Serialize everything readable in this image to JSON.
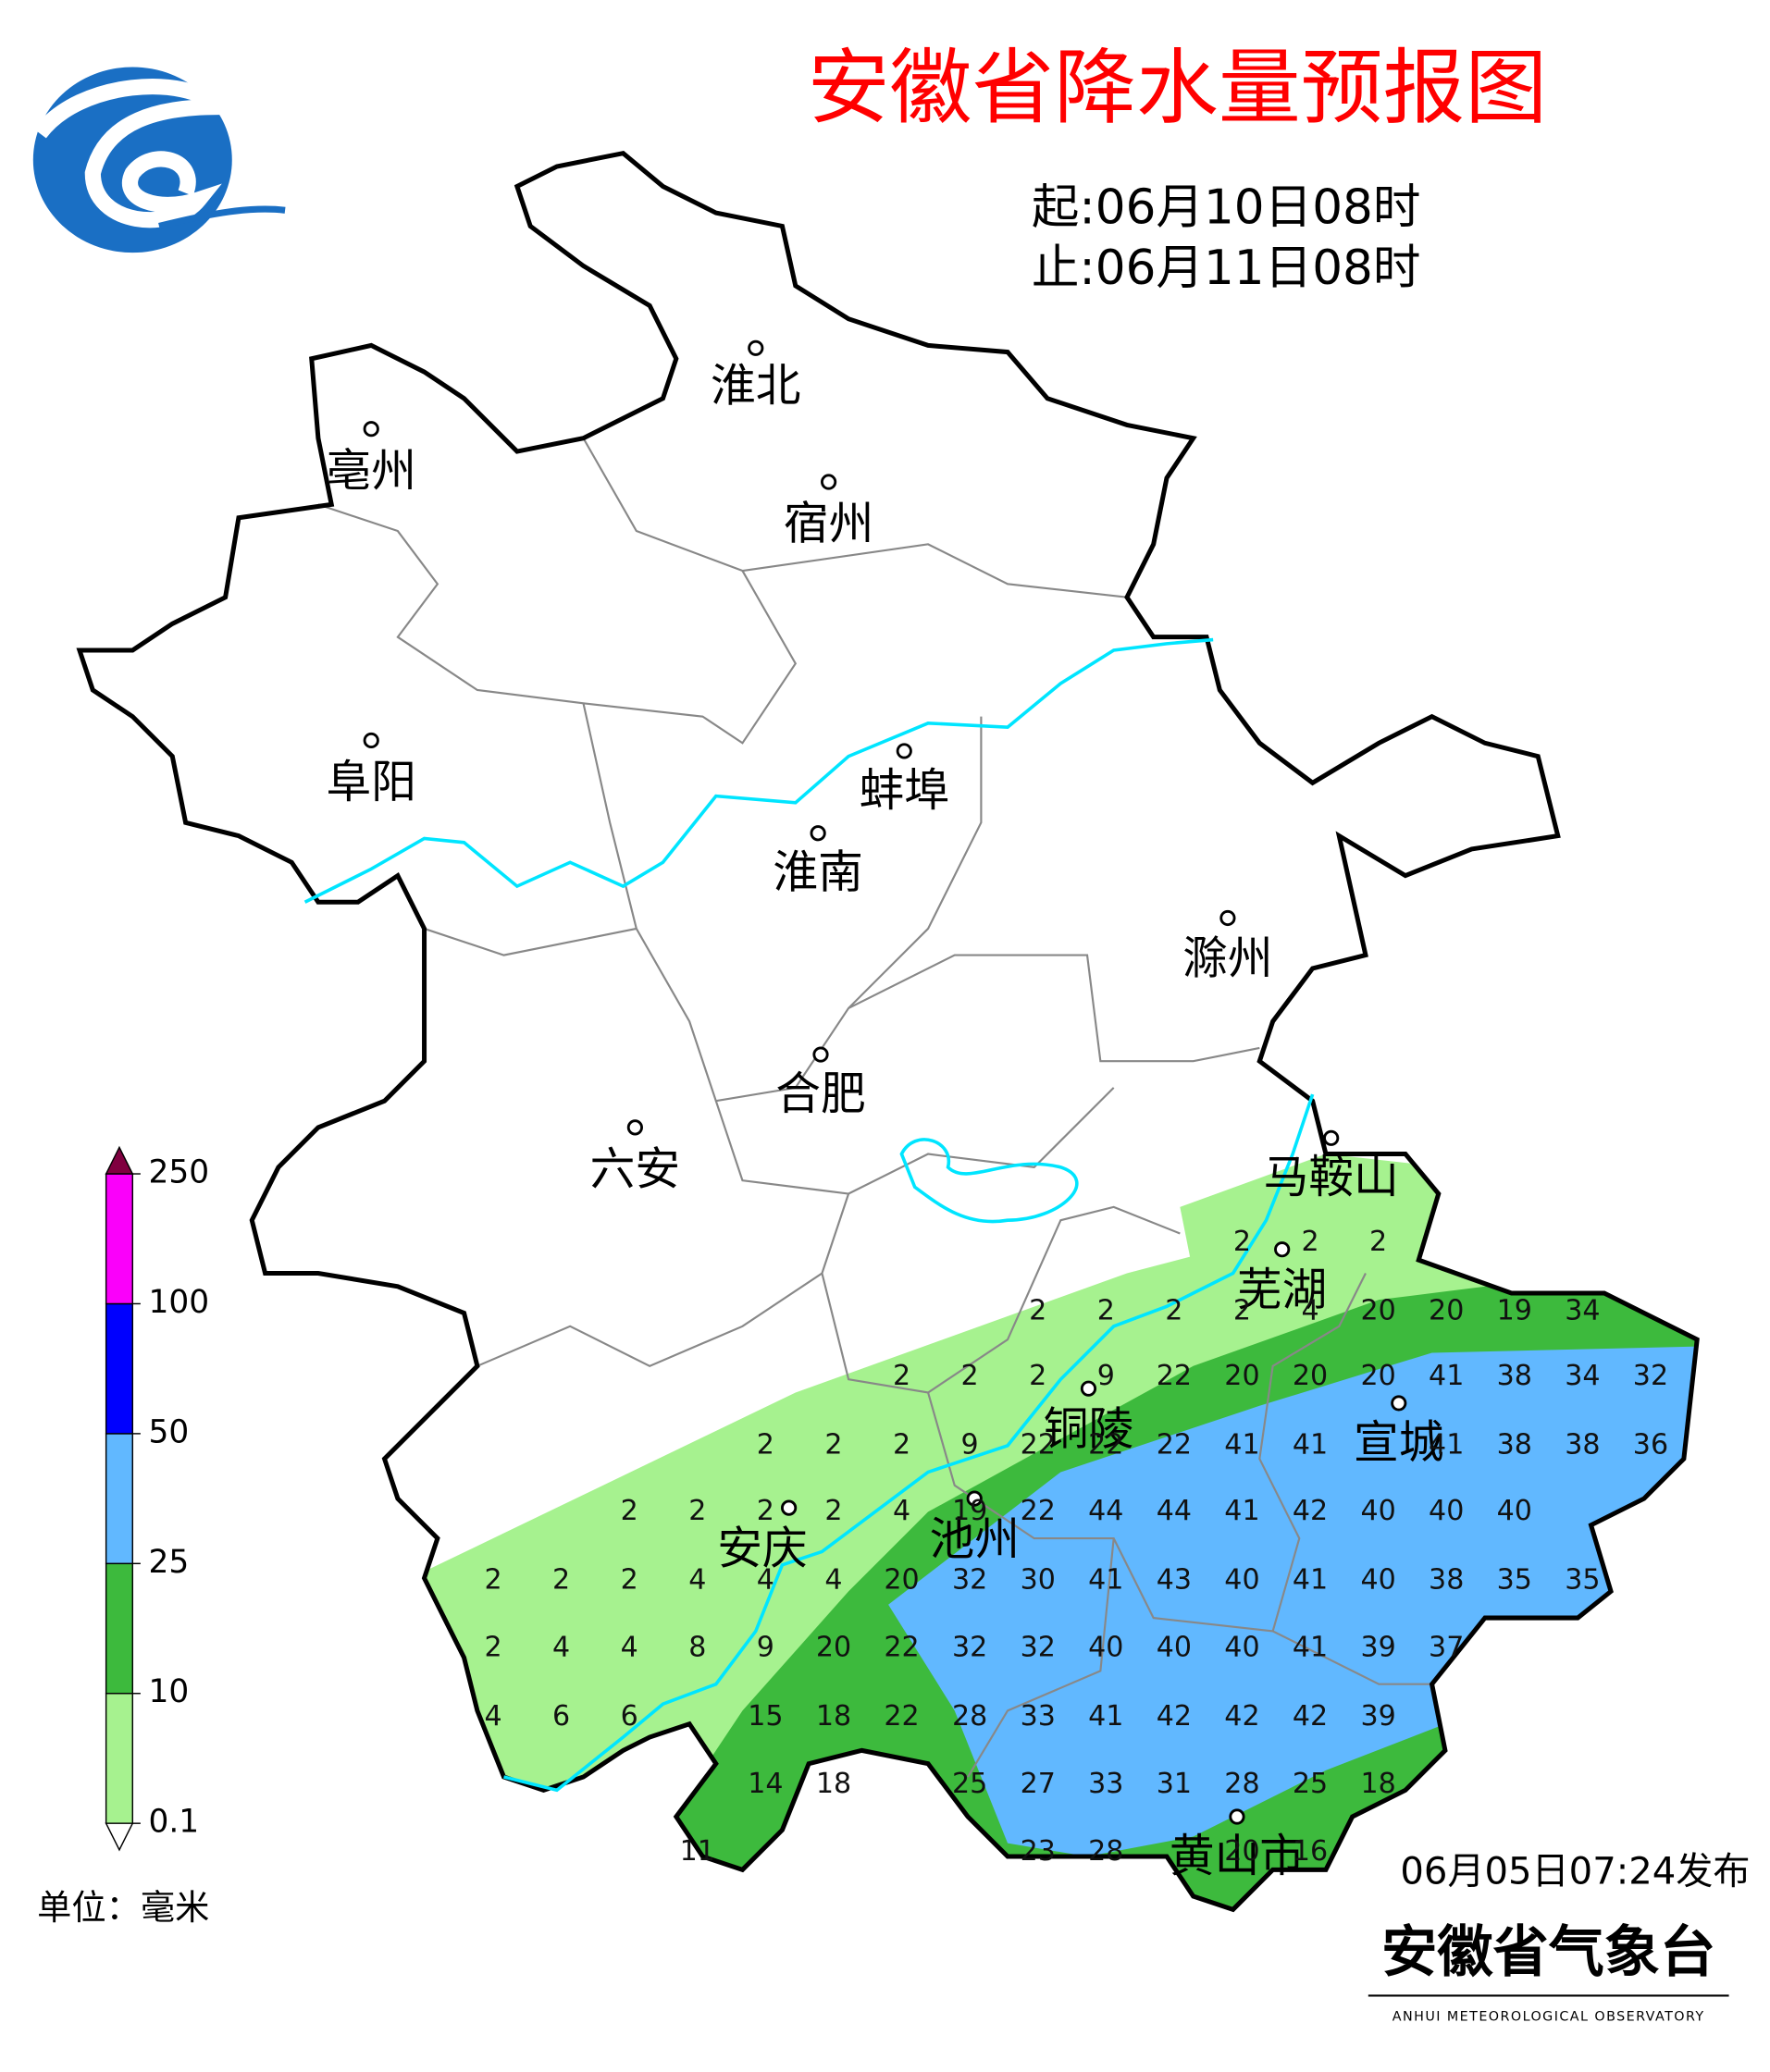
{
  "header": {
    "title": "安徽省降水量预报图",
    "start": "起:06月10日08时",
    "end": "止:06月11日08时"
  },
  "cities": [
    "淮北",
    "亳州",
    "宿州",
    "阜阳",
    "蚌埠",
    "淮南",
    "滁州",
    "合肥",
    "六安",
    "马鞍山",
    "芜湖",
    "铜陵",
    "宣城",
    "安庆",
    "池州",
    "黄山市"
  ],
  "grid": {
    "rows": [
      [
        null,
        null,
        null,
        null,
        null,
        null,
        null,
        null,
        null,
        null,
        null,
        2,
        2,
        2,
        null,
        null,
        null,
        null
      ],
      [
        null,
        null,
        null,
        null,
        null,
        null,
        null,
        null,
        2,
        2,
        2,
        2,
        4,
        20,
        20,
        19,
        34,
        null
      ],
      [
        null,
        null,
        null,
        null,
        null,
        null,
        2,
        2,
        2,
        9,
        22,
        20,
        20,
        20,
        41,
        38,
        34,
        32
      ],
      [
        null,
        null,
        null,
        null,
        2,
        2,
        2,
        9,
        22,
        22,
        22,
        41,
        41,
        null,
        41,
        38,
        38,
        36
      ],
      [
        null,
        null,
        2,
        2,
        2,
        2,
        4,
        19,
        22,
        44,
        44,
        41,
        42,
        40,
        40,
        40,
        null,
        null
      ],
      [
        2,
        2,
        2,
        4,
        4,
        4,
        20,
        32,
        30,
        41,
        43,
        40,
        41,
        40,
        38,
        35,
        35,
        null
      ],
      [
        2,
        4,
        4,
        8,
        9,
        20,
        22,
        32,
        32,
        40,
        40,
        40,
        41,
        39,
        37,
        null,
        null,
        null
      ],
      [
        4,
        6,
        6,
        null,
        15,
        18,
        22,
        28,
        33,
        41,
        42,
        42,
        42,
        39,
        null,
        null,
        null,
        null
      ],
      [
        null,
        null,
        null,
        null,
        14,
        18,
        null,
        25,
        27,
        33,
        31,
        28,
        25,
        18,
        null,
        null,
        null,
        null
      ],
      [
        null,
        null,
        null,
        11,
        null,
        null,
        null,
        null,
        23,
        28,
        null,
        20,
        16,
        null,
        null,
        null,
        null,
        null
      ]
    ]
  },
  "legend": {
    "levels": [
      0.1,
      10,
      25,
      50,
      100,
      250
    ],
    "colors": [
      "#a6f28f",
      "#3dba3d",
      "#61b8ff",
      "#0000fe",
      "#fa00fa"
    ],
    "over_color": "#800040",
    "unit": "单位：毫米"
  },
  "footer": {
    "issued": "06月05日07:24发布",
    "agency": "安徽省气象台",
    "agency_en": "ANHUI METEOROLOGICAL OBSERVATORY"
  }
}
